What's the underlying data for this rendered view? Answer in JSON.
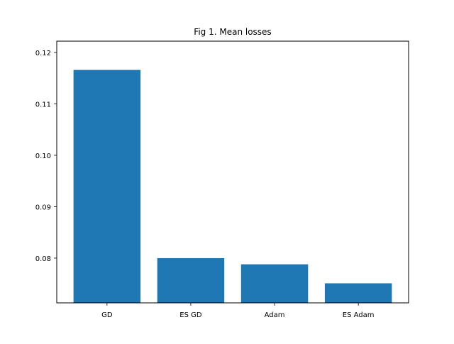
{
  "chart_data": {
    "type": "bar",
    "title": "Fig 1. Mean losses",
    "xlabel": "",
    "ylabel": "",
    "categories": [
      "GD",
      "ES GD",
      "Adam",
      "ES Adam"
    ],
    "values": [
      0.1166,
      0.08,
      0.0788,
      0.0751
    ],
    "ylim": [
      0.0713,
      0.1222
    ],
    "yticks": [
      {
        "value": 0.08,
        "label": "0.08"
      },
      {
        "value": 0.09,
        "label": "0.09"
      },
      {
        "value": 0.1,
        "label": "0.10"
      },
      {
        "value": 0.11,
        "label": "0.11"
      },
      {
        "value": 0.12,
        "label": "0.12"
      }
    ],
    "bar_color": "#1f77b4",
    "grid": false,
    "legend": "none"
  }
}
